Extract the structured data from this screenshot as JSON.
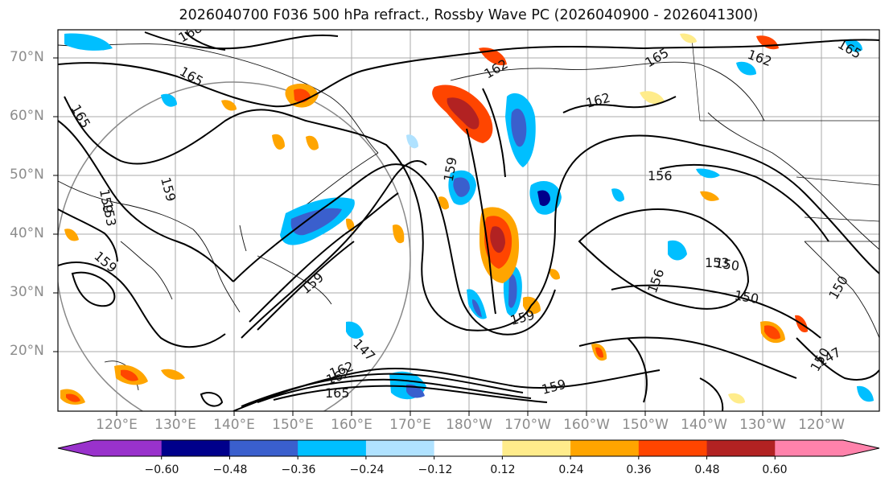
{
  "title": "2026040700 F036 500 hPa refract., Rossby Wave PC (2026040900 - 2026041300)",
  "lat_labels": [
    "70°N",
    "60°N",
    "50°N",
    "40°N",
    "30°N",
    "20°N"
  ],
  "lon_labels": [
    "120°E",
    "130°E",
    "140°E",
    "150°E",
    "160°E",
    "170°E",
    "180°W",
    "170°W",
    "160°W",
    "150°W",
    "140°W",
    "130°W",
    "120°W"
  ],
  "colorbar": {
    "ticks": [
      "−0.60",
      "−0.48",
      "−0.36",
      "−0.24",
      "−0.12",
      "0.12",
      "0.24",
      "0.36",
      "0.48",
      "0.60"
    ],
    "colors": [
      "#9932CC",
      "#00008B",
      "#3A5FCD",
      "#00BFFF",
      "#B0E2FF",
      "#FFFFFF",
      "#FFEC8B",
      "#FFA500",
      "#FF4500",
      "#B22222",
      "#FF82AB"
    ]
  },
  "contour_labels": [
    "168",
    "165",
    "165",
    "162",
    "165",
    "162",
    "162",
    "165",
    "159",
    "159",
    "159",
    "159",
    "156",
    "150",
    "153",
    "150",
    "156",
    "159",
    "159",
    "150",
    "147",
    "162",
    "165",
    "159",
    "147",
    "150",
    "153",
    "162"
  ]
}
